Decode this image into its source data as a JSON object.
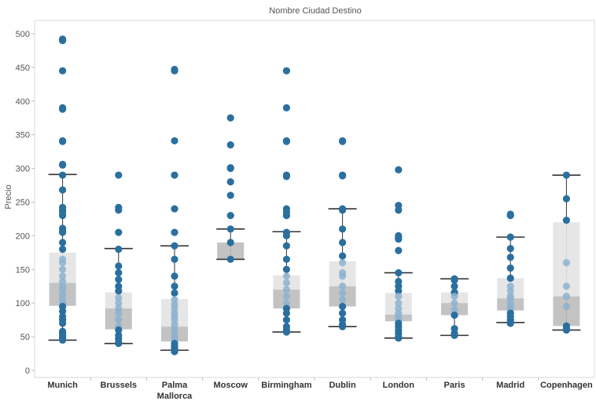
{
  "chart_data": {
    "type": "box-plot",
    "title": "Nombre Ciudad Destino",
    "ylabel": "Precio",
    "ylim": [
      0,
      530
    ],
    "yticks": [
      0,
      50,
      100,
      150,
      200,
      250,
      300,
      350,
      400,
      450,
      500
    ],
    "grid": false,
    "colors": {
      "point": "#2a6fa0",
      "point_light": "#8db1cf",
      "box_upper": "#e3e3e3",
      "box_lower": "#bdbdbd",
      "whisker": "#333333"
    },
    "categories": [
      {
        "label": [
          "Munich"
        ],
        "whisker_low": 45,
        "q1": 96,
        "median": 130,
        "q3": 175,
        "whisker_high": 291,
        "points": [
          492,
          490,
          445,
          390,
          388,
          341,
          340,
          306,
          305,
          290,
          268,
          242,
          238,
          235,
          230,
          211,
          207,
          205,
          190,
          180,
          165,
          160,
          150,
          140,
          132,
          125,
          120,
          112,
          105,
          100,
          95,
          88,
          80,
          75,
          70,
          58,
          55,
          52,
          50,
          48,
          45
        ]
      },
      {
        "label": [
          "Brussels"
        ],
        "whisker_low": 40,
        "q1": 61,
        "median": 92,
        "q3": 116,
        "whisker_high": 181,
        "points": [
          290,
          242,
          238,
          205,
          180,
          155,
          145,
          135,
          125,
          118,
          108,
          100,
          92,
          85,
          75,
          65,
          60,
          52,
          47,
          42,
          40
        ]
      },
      {
        "label": [
          "Palma",
          "Mallorca"
        ],
        "whisker_low": 30,
        "q1": 43,
        "median": 65,
        "q3": 106,
        "whisker_high": 185,
        "points": [
          447,
          445,
          341,
          290,
          240,
          205,
          185,
          165,
          140,
          125,
          115,
          105,
          98,
          92,
          85,
          80,
          75,
          68,
          62,
          55,
          50,
          45,
          40,
          36,
          33,
          30,
          28
        ]
      },
      {
        "label": [
          "Moscow"
        ],
        "whisker_low": 165,
        "q1": 165,
        "median": 190,
        "q3": 190,
        "whisker_high": 210,
        "points": [
          375,
          335,
          301,
          300,
          280,
          260,
          230,
          210,
          190,
          165
        ]
      },
      {
        "label": [
          "Birmingham"
        ],
        "whisker_low": 57,
        "q1": 92,
        "median": 120,
        "q3": 141,
        "whisker_high": 206,
        "points": [
          445,
          390,
          341,
          340,
          290,
          288,
          240,
          235,
          230,
          205,
          200,
          185,
          165,
          150,
          140,
          130,
          120,
          110,
          100,
          92,
          85,
          75,
          65,
          60,
          57
        ]
      },
      {
        "label": [
          "Dublin"
        ],
        "whisker_low": 65,
        "q1": 95,
        "median": 125,
        "q3": 162,
        "whisker_high": 240,
        "points": [
          341,
          340,
          290,
          289,
          240,
          238,
          210,
          190,
          170,
          160,
          145,
          140,
          125,
          115,
          105,
          95,
          85,
          75,
          68,
          65
        ]
      },
      {
        "label": [
          "London"
        ],
        "whisker_low": 48,
        "q1": 73,
        "median": 83,
        "q3": 115,
        "whisker_high": 145,
        "points": [
          298,
          245,
          238,
          200,
          198,
          195,
          178,
          145,
          132,
          125,
          118,
          110,
          100,
          92,
          85,
          80,
          75,
          70,
          65,
          60,
          55,
          50,
          48
        ]
      },
      {
        "label": [
          "Paris"
        ],
        "whisker_low": 52,
        "q1": 82,
        "median": 100,
        "q3": 116,
        "whisker_high": 136,
        "points": [
          136,
          134,
          125,
          116,
          110,
          100,
          90,
          82,
          62,
          55,
          52
        ]
      },
      {
        "label": [
          "Madrid"
        ],
        "whisker_low": 71,
        "q1": 89,
        "median": 107,
        "q3": 137,
        "whisker_high": 198,
        "points": [
          232,
          230,
          198,
          181,
          168,
          152,
          137,
          125,
          118,
          110,
          107,
          100,
          95,
          90,
          85,
          80,
          75,
          72,
          70
        ]
      },
      {
        "label": [
          "Copenhagen"
        ],
        "whisker_low": 60,
        "q1": 66,
        "median": 110,
        "q3": 220,
        "whisker_high": 290,
        "points": [
          290,
          255,
          223,
          160,
          125,
          110,
          95,
          66,
          62,
          60
        ]
      }
    ]
  }
}
